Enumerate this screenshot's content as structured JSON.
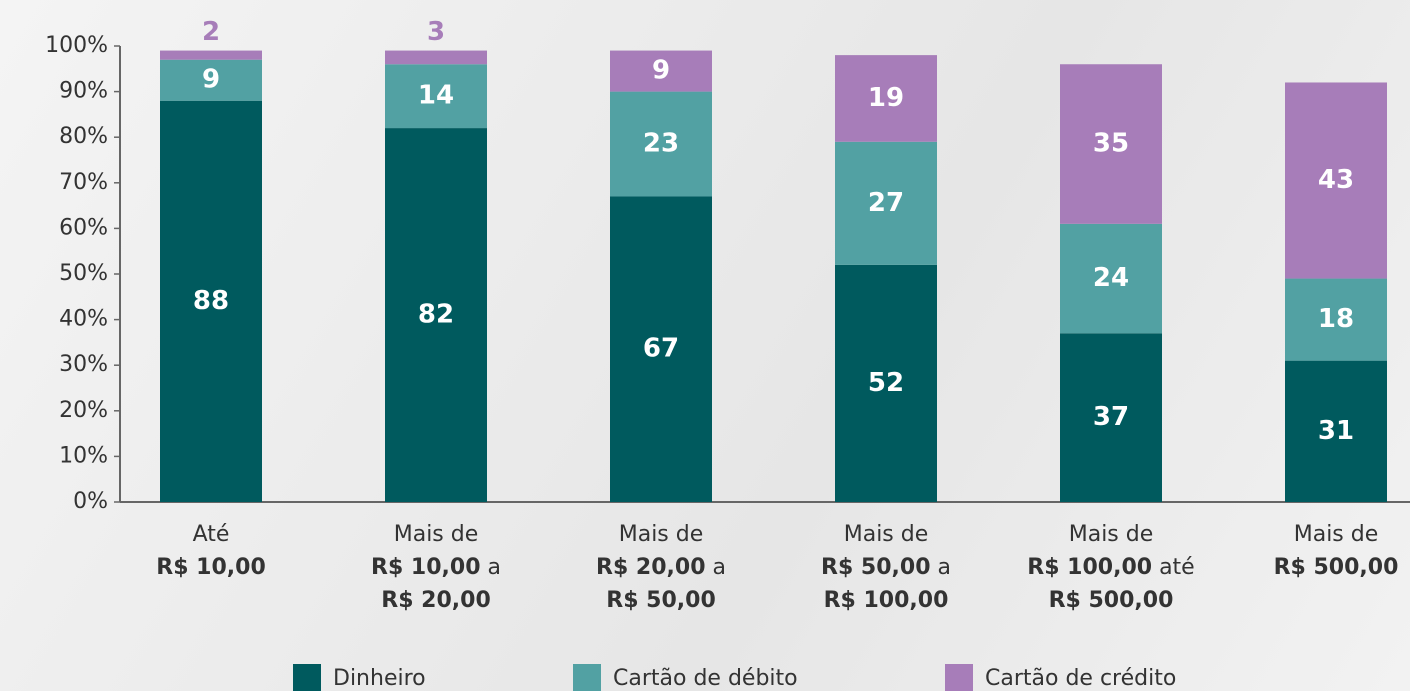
{
  "chart_data": {
    "type": "stacked_bar",
    "categories": [
      [
        [
          "Até"
        ],
        [
          "R$ 10,00"
        ]
      ],
      [
        [
          "Mais de"
        ],
        [
          "R$ 10,00",
          " a"
        ],
        [
          "R$ 20,00"
        ]
      ],
      [
        [
          "Mais de"
        ],
        [
          "R$ 20,00",
          " a"
        ],
        [
          "R$ 50,00"
        ]
      ],
      [
        [
          "Mais de"
        ],
        [
          "R$ 50,00",
          " a"
        ],
        [
          "R$ 100,00"
        ]
      ],
      [
        [
          "Mais de"
        ],
        [
          "R$ 100,00",
          " até"
        ],
        [
          "R$ 500,00"
        ]
      ],
      [
        [
          "Mais de"
        ],
        [
          "R$ 500,00"
        ]
      ]
    ],
    "series": [
      {
        "name": "Dinheiro",
        "color": "#005a5e",
        "values": [
          88,
          82,
          67,
          52,
          37,
          31
        ]
      },
      {
        "name": "Cartão de débito",
        "color": "#52a1a3",
        "values": [
          9,
          14,
          23,
          27,
          24,
          18
        ]
      },
      {
        "name": "Cartão de crédito",
        "color": "#a77db9",
        "values": [
          2,
          3,
          9,
          19,
          35,
          43
        ]
      }
    ],
    "ylim": [
      0,
      100
    ],
    "yticks": [
      {
        "value": 0,
        "label": "0%"
      },
      {
        "value": 10,
        "label": "10%"
      },
      {
        "value": 20,
        "label": "20%"
      },
      {
        "value": 30,
        "label": "30%"
      },
      {
        "value": 40,
        "label": "40%"
      },
      {
        "value": 50,
        "label": "50%"
      },
      {
        "value": 60,
        "label": "60%"
      },
      {
        "value": 70,
        "label": "70%"
      },
      {
        "value": 80,
        "label": "80%"
      },
      {
        "value": 90,
        "label": "90%"
      },
      {
        "value": 100,
        "label": "100%"
      }
    ],
    "legend": "bottom"
  }
}
